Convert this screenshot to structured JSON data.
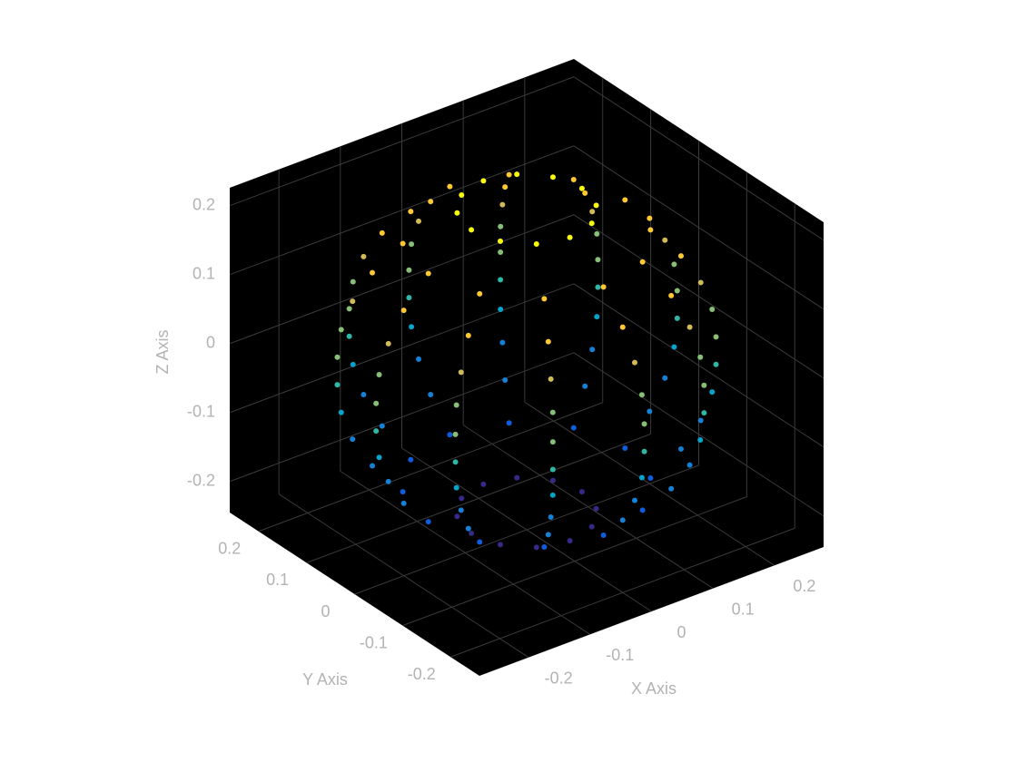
{
  "chart_data": {
    "type": "scatter3d",
    "xlabel": "X Axis",
    "ylabel": "Y Axis",
    "zlabel": "Z Axis",
    "xlim": [
      -0.28,
      0.28
    ],
    "ylim": [
      -0.26,
      0.26
    ],
    "zlim": [
      -0.245,
      0.226
    ],
    "xticks": [
      -0.2,
      -0.1,
      0,
      0.1,
      0.2
    ],
    "yticks": [
      -0.2,
      -0.1,
      0,
      0.1,
      0.2
    ],
    "zticks": [
      -0.2,
      -0.1,
      0,
      0.1,
      0.2
    ],
    "grid": true,
    "background": "#000000",
    "grid_color": "#3a3a3a",
    "label_color": "#b3b3b3",
    "colormap": [
      "#352a87",
      "#0f5cdd",
      "#1481d6",
      "#06a4ca",
      "#2eb7a4",
      "#87bf77",
      "#d1bb59",
      "#fec832",
      "#f9fb0e"
    ],
    "x": [
      0.09,
      0.078,
      0.045,
      0,
      -0.045,
      -0.078,
      -0.09,
      -0.078,
      -0.045,
      0,
      0.045,
      0.078,
      0.16,
      0.139,
      0.08,
      0,
      -0.08,
      -0.139,
      -0.16,
      -0.139,
      -0.08,
      0,
      0.08,
      0.139,
      0.2,
      0.173,
      0.1,
      0,
      -0.1,
      -0.173,
      -0.2,
      -0.173,
      -0.1,
      0,
      0.1,
      0.173,
      0.225,
      0.195,
      0.113,
      0,
      -0.113,
      -0.195,
      -0.225,
      -0.195,
      -0.113,
      0,
      0.113,
      0.195,
      0.24,
      0.208,
      0.12,
      0,
      -0.12,
      -0.208,
      -0.24,
      -0.208,
      -0.12,
      0,
      0.12,
      0.208,
      0.245,
      0.212,
      0.123,
      0,
      -0.123,
      -0.212,
      -0.245,
      -0.212,
      -0.123,
      0,
      0.123,
      0.212,
      0.245,
      0.212,
      0.123,
      0,
      -0.123,
      -0.212,
      -0.245,
      -0.212,
      -0.123,
      0,
      0.123,
      0.212,
      0.24,
      0.208,
      0.12,
      0,
      -0.12,
      -0.208,
      -0.24,
      -0.208,
      -0.12,
      0,
      0.12,
      0.208,
      0.225,
      0.195,
      0.113,
      0,
      -0.113,
      -0.195,
      -0.225,
      -0.195,
      -0.113,
      0,
      0.113,
      0.195,
      0.2,
      0.173,
      0.1,
      0,
      -0.1,
      -0.173,
      -0.2,
      -0.173,
      -0.1,
      0,
      0.1,
      0.173,
      0.16,
      0.139,
      0.08,
      0,
      -0.08,
      -0.139,
      -0.16,
      -0.139,
      -0.08,
      0,
      0.08,
      0.139,
      0.09,
      0.078,
      0.045,
      0,
      -0.045,
      -0.078,
      -0.09,
      -0.078,
      -0.045,
      0,
      0.045,
      0.078
    ],
    "y": [
      0,
      0.045,
      0.078,
      0.09,
      0.078,
      0.045,
      0,
      -0.045,
      -0.078,
      -0.09,
      -0.078,
      -0.045,
      0,
      0.08,
      0.139,
      0.16,
      0.139,
      0.08,
      0,
      -0.08,
      -0.139,
      -0.16,
      -0.139,
      -0.08,
      0,
      0.1,
      0.173,
      0.2,
      0.173,
      0.1,
      0,
      -0.1,
      -0.173,
      -0.2,
      -0.173,
      -0.1,
      0,
      0.113,
      0.195,
      0.225,
      0.195,
      0.113,
      0,
      -0.113,
      -0.195,
      -0.225,
      -0.195,
      -0.113,
      0,
      0.12,
      0.208,
      0.24,
      0.208,
      0.12,
      0,
      -0.12,
      -0.208,
      -0.24,
      -0.208,
      -0.12,
      0,
      0.123,
      0.212,
      0.245,
      0.212,
      0.123,
      0,
      -0.123,
      -0.212,
      -0.245,
      -0.212,
      -0.123,
      0,
      0.123,
      0.212,
      0.245,
      0.212,
      0.123,
      0,
      -0.123,
      -0.212,
      -0.245,
      -0.212,
      -0.123,
      0,
      0.12,
      0.208,
      0.24,
      0.208,
      0.12,
      0,
      -0.12,
      -0.208,
      -0.24,
      -0.208,
      -0.12,
      0,
      0.113,
      0.195,
      0.225,
      0.195,
      0.113,
      0,
      -0.113,
      -0.195,
      -0.225,
      -0.195,
      -0.113,
      0,
      0.1,
      0.173,
      0.2,
      0.173,
      0.1,
      0,
      -0.1,
      -0.173,
      -0.2,
      -0.173,
      -0.1,
      0,
      0.08,
      0.139,
      0.16,
      0.139,
      0.08,
      0,
      -0.08,
      -0.139,
      -0.16,
      -0.139,
      -0.08,
      0,
      0.045,
      0.078,
      0.09,
      0.078,
      0.045,
      0,
      -0.045,
      -0.078,
      -0.09,
      -0.078,
      -0.045
    ],
    "z": [
      -0.22,
      -0.22,
      -0.22,
      -0.22,
      -0.22,
      -0.22,
      -0.22,
      -0.22,
      -0.22,
      -0.22,
      -0.22,
      -0.22,
      -0.18,
      -0.18,
      -0.18,
      -0.18,
      -0.18,
      -0.18,
      -0.18,
      -0.18,
      -0.18,
      -0.18,
      -0.18,
      -0.18,
      -0.14,
      -0.14,
      -0.14,
      -0.14,
      -0.14,
      -0.14,
      -0.14,
      -0.14,
      -0.14,
      -0.14,
      -0.14,
      -0.14,
      -0.1,
      -0.1,
      -0.1,
      -0.1,
      -0.1,
      -0.1,
      -0.1,
      -0.1,
      -0.1,
      -0.1,
      -0.1,
      -0.1,
      -0.06,
      -0.06,
      -0.06,
      -0.06,
      -0.06,
      -0.06,
      -0.06,
      -0.06,
      -0.06,
      -0.06,
      -0.06,
      -0.06,
      -0.02,
      -0.02,
      -0.02,
      -0.02,
      -0.02,
      -0.02,
      -0.02,
      -0.02,
      -0.02,
      -0.02,
      -0.02,
      -0.02,
      0.02,
      0.02,
      0.02,
      0.02,
      0.02,
      0.02,
      0.02,
      0.02,
      0.02,
      0.02,
      0.02,
      0.02,
      0.06,
      0.06,
      0.06,
      0.06,
      0.06,
      0.06,
      0.06,
      0.06,
      0.06,
      0.06,
      0.06,
      0.06,
      0.1,
      0.1,
      0.1,
      0.1,
      0.1,
      0.1,
      0.1,
      0.1,
      0.1,
      0.1,
      0.1,
      0.1,
      0.14,
      0.14,
      0.14,
      0.14,
      0.14,
      0.14,
      0.14,
      0.14,
      0.14,
      0.14,
      0.14,
      0.14,
      0.18,
      0.18,
      0.18,
      0.18,
      0.18,
      0.18,
      0.18,
      0.18,
      0.18,
      0.18,
      0.18,
      0.18,
      0.22,
      0.22,
      0.22,
      0.22,
      0.22,
      0.22,
      0.22,
      0.22,
      0.22,
      0.22,
      0.22,
      0.22
    ]
  }
}
